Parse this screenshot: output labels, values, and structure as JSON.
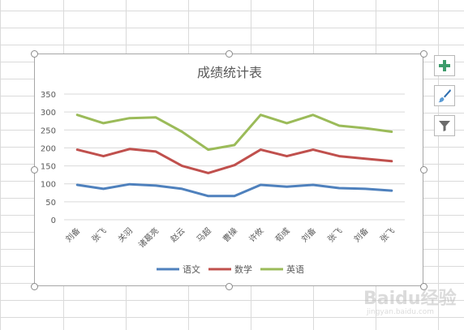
{
  "colors": {
    "chinese": "#4f81bd",
    "math": "#c0504d",
    "english": "#9bbb59",
    "gridline": "#d9d9d9",
    "axis_text": "#595959",
    "title": "#595959",
    "plus_icon": "#3d9c6b",
    "brush_icon": "#2f6fb0",
    "filter_icon": "#6b6b6b"
  },
  "toolbar": {
    "add_icon": "plus-icon",
    "style_icon": "brush-icon",
    "filter_icon": "filter-icon"
  },
  "watermark": {
    "text": "Baidu经验",
    "sub": "jingyan.baidu.com"
  },
  "chart_data": {
    "type": "line",
    "title": "成绩统计表",
    "xlabel": "",
    "ylabel": "",
    "categories": [
      "刘备",
      "张飞",
      "关羽",
      "诸葛亮",
      "赵云",
      "马超",
      "曹操",
      "许攸",
      "荀彧",
      "刘备",
      "张飞",
      "刘备",
      "张飞"
    ],
    "ylim": [
      0,
      350
    ],
    "yticks": [
      0,
      50,
      100,
      150,
      200,
      250,
      300,
      350
    ],
    "grid": true,
    "legend_position": "bottom",
    "series": [
      {
        "name": "语文",
        "values": [
          97,
          86,
          99,
          95,
          86,
          66,
          66,
          97,
          92,
          97,
          88,
          86,
          81
        ]
      },
      {
        "name": "数学",
        "values": [
          195,
          177,
          197,
          190,
          150,
          130,
          152,
          195,
          177,
          195,
          177,
          170,
          163
        ]
      },
      {
        "name": "英语",
        "values": [
          292,
          269,
          283,
          285,
          245,
          195,
          208,
          292,
          269,
          292,
          262,
          255,
          245
        ]
      }
    ]
  }
}
